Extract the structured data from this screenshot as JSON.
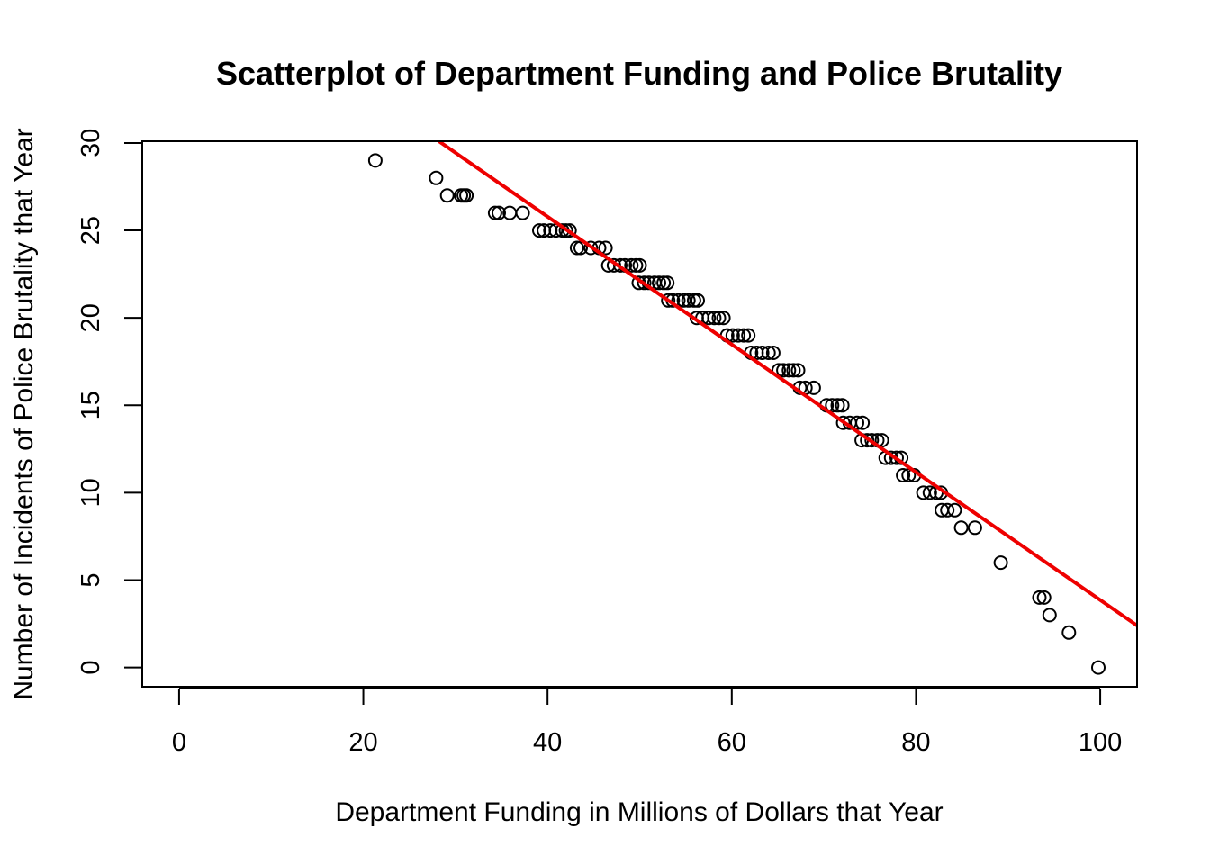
{
  "chart_data": {
    "type": "scatter",
    "title": "Scatterplot of Department Funding and Police Brutality",
    "xlabel": "Department Funding in Millions of Dollars that Year",
    "ylabel": "Number of Incidents of Police Brutality that Year",
    "xlim": [
      -4,
      104
    ],
    "ylim": [
      -1.1,
      30.1
    ],
    "xticks": [
      0,
      20,
      40,
      60,
      80,
      100
    ],
    "yticks": [
      0,
      5,
      10,
      15,
      20,
      25,
      30
    ],
    "grid": false,
    "legend": "none",
    "point_color": "#000000",
    "line_color": "#ee0000",
    "series": [
      {
        "values": [
          [
            21.3,
            29
          ],
          [
            27.9,
            28
          ],
          [
            29.1,
            27
          ],
          [
            30.6,
            27
          ],
          [
            30.9,
            27
          ],
          [
            31.2,
            27
          ],
          [
            34.3,
            26
          ],
          [
            34.7,
            26
          ],
          [
            35.9,
            26
          ],
          [
            37.3,
            26
          ],
          [
            39.1,
            25
          ],
          [
            39.6,
            25
          ],
          [
            40.3,
            25
          ],
          [
            40.9,
            25
          ],
          [
            41.6,
            25
          ],
          [
            42.0,
            25
          ],
          [
            42.4,
            25
          ],
          [
            43.2,
            24
          ],
          [
            43.6,
            24
          ],
          [
            44.7,
            24
          ],
          [
            45.6,
            24
          ],
          [
            46.3,
            24
          ],
          [
            46.6,
            23
          ],
          [
            47.2,
            23
          ],
          [
            47.9,
            23
          ],
          [
            48.4,
            23
          ],
          [
            49.1,
            23
          ],
          [
            49.6,
            23
          ],
          [
            50.0,
            23
          ],
          [
            49.9,
            22
          ],
          [
            50.5,
            22
          ],
          [
            51.0,
            22
          ],
          [
            51.6,
            22
          ],
          [
            52.1,
            22
          ],
          [
            52.6,
            22
          ],
          [
            53.0,
            22
          ],
          [
            53.1,
            21
          ],
          [
            53.6,
            21
          ],
          [
            54.2,
            21
          ],
          [
            54.8,
            21
          ],
          [
            55.3,
            21
          ],
          [
            55.9,
            21
          ],
          [
            56.3,
            21
          ],
          [
            56.2,
            20
          ],
          [
            56.8,
            20
          ],
          [
            57.5,
            20
          ],
          [
            58.1,
            20
          ],
          [
            58.6,
            20
          ],
          [
            59.1,
            20
          ],
          [
            59.5,
            19
          ],
          [
            60.1,
            19
          ],
          [
            60.7,
            19
          ],
          [
            61.3,
            19
          ],
          [
            61.8,
            19
          ],
          [
            62.1,
            18
          ],
          [
            62.7,
            18
          ],
          [
            63.3,
            18
          ],
          [
            64.0,
            18
          ],
          [
            64.5,
            18
          ],
          [
            65.1,
            17
          ],
          [
            65.6,
            17
          ],
          [
            66.2,
            17
          ],
          [
            66.7,
            17
          ],
          [
            67.2,
            17
          ],
          [
            67.4,
            16
          ],
          [
            68.0,
            16
          ],
          [
            68.9,
            16
          ],
          [
            70.3,
            15
          ],
          [
            70.9,
            15
          ],
          [
            71.5,
            15
          ],
          [
            72.0,
            15
          ],
          [
            72.1,
            14
          ],
          [
            72.8,
            14
          ],
          [
            73.6,
            14
          ],
          [
            74.2,
            14
          ],
          [
            74.1,
            13
          ],
          [
            74.7,
            13
          ],
          [
            75.2,
            13
          ],
          [
            75.8,
            13
          ],
          [
            76.3,
            13
          ],
          [
            76.7,
            12
          ],
          [
            77.3,
            12
          ],
          [
            77.9,
            12
          ],
          [
            78.4,
            12
          ],
          [
            78.6,
            11
          ],
          [
            79.2,
            11
          ],
          [
            79.8,
            11
          ],
          [
            80.8,
            10
          ],
          [
            81.5,
            10
          ],
          [
            82.2,
            10
          ],
          [
            82.7,
            10
          ],
          [
            82.8,
            9
          ],
          [
            83.4,
            9
          ],
          [
            84.2,
            9
          ],
          [
            84.9,
            8
          ],
          [
            86.4,
            8
          ],
          [
            89.2,
            6
          ],
          [
            93.4,
            4
          ],
          [
            93.9,
            4
          ],
          [
            94.5,
            3
          ],
          [
            96.6,
            2
          ],
          [
            99.8,
            0
          ]
        ]
      }
    ],
    "fit_line": {
      "x": [
        28.2,
        104
      ],
      "y": [
        30.1,
        2.4
      ]
    }
  }
}
